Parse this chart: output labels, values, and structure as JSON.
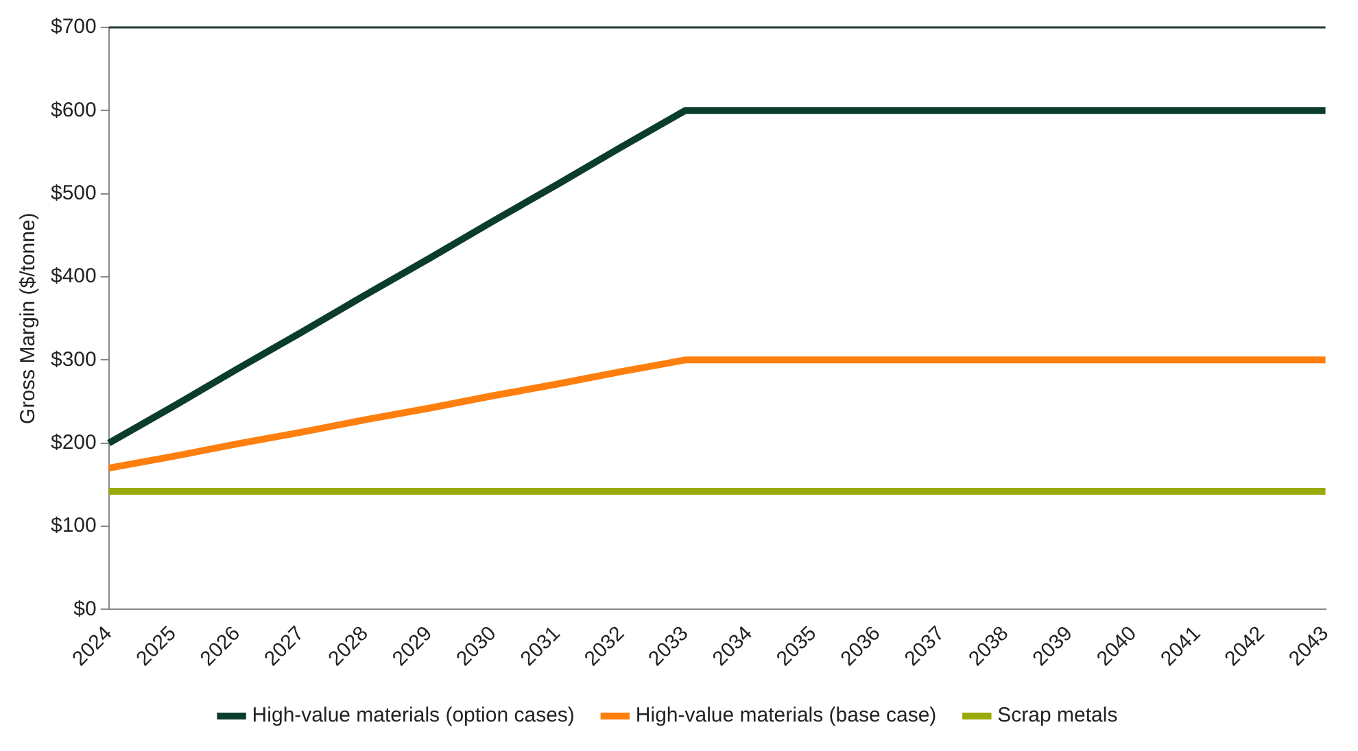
{
  "chart_data": {
    "type": "line",
    "ylabel": "Gross Margin ($/tonne)",
    "categories": [
      "2024",
      "2025",
      "2026",
      "2027",
      "2028",
      "2029",
      "2030",
      "2031",
      "2032",
      "2033",
      "2034",
      "2035",
      "2036",
      "2037",
      "2038",
      "2039",
      "2040",
      "2041",
      "2042",
      "2043"
    ],
    "series": [
      {
        "name": "High-value materials (option cases)",
        "color": "#0b3d2c",
        "values": [
          200,
          244,
          289,
          333,
          378,
          422,
          467,
          511,
          556,
          600,
          600,
          600,
          600,
          600,
          600,
          600,
          600,
          600,
          600,
          600
        ]
      },
      {
        "name": "High-value materials (base case)",
        "color": "#ff7f0e",
        "values": [
          170,
          184,
          199,
          213,
          228,
          242,
          257,
          271,
          286,
          300,
          300,
          300,
          300,
          300,
          300,
          300,
          300,
          300,
          300,
          300
        ]
      },
      {
        "name": "Scrap metals",
        "color": "#9aaa0a",
        "values": [
          142,
          142,
          142,
          142,
          142,
          142,
          142,
          142,
          142,
          142,
          142,
          142,
          142,
          142,
          142,
          142,
          142,
          142,
          142,
          142
        ]
      }
    ],
    "ylim": [
      0,
      700
    ],
    "yticks": [
      {
        "value": 0,
        "label": "$0"
      },
      {
        "value": 100,
        "label": "$100"
      },
      {
        "value": 200,
        "label": "$200"
      },
      {
        "value": 300,
        "label": "$300"
      },
      {
        "value": 400,
        "label": "$400"
      },
      {
        "value": 500,
        "label": "$500"
      },
      {
        "value": 600,
        "label": "$600"
      },
      {
        "value": 700,
        "label": "$700"
      }
    ],
    "grid": false,
    "legend": "bottom",
    "marker": "none",
    "line_style": "solid"
  }
}
